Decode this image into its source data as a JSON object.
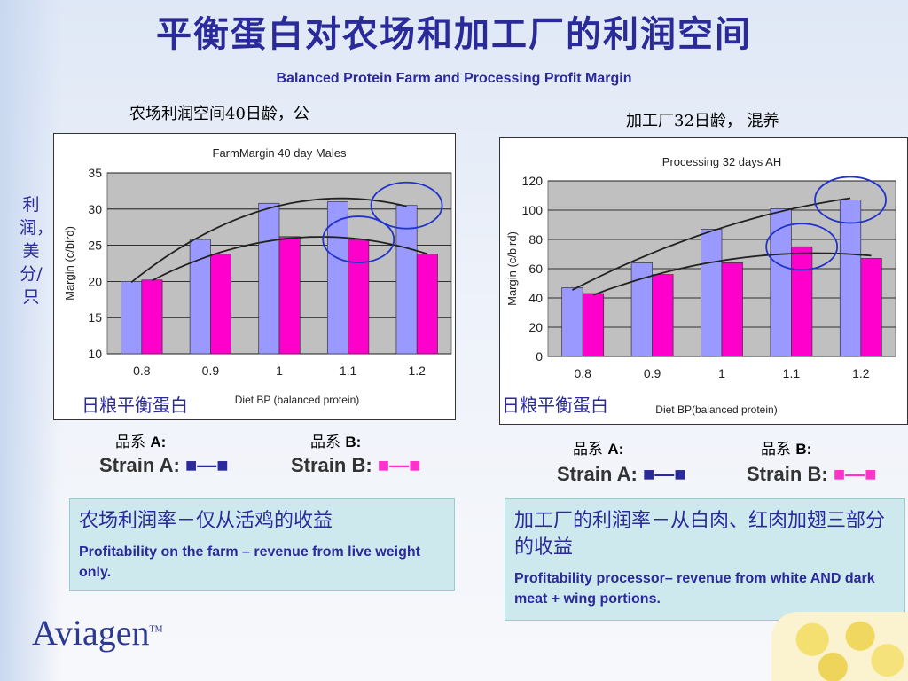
{
  "title": "平衡蛋白对农场和加工厂的利润空间",
  "subtitle": "Balanced Protein Farm and Processing Profit Margin",
  "left_caption": "农场利润空间40日龄，公",
  "right_caption": "加工厂32日龄， 混养",
  "vertical_label": "利润，美分/只",
  "diet_label_zh": "日粮平衡蛋白",
  "strain_a_zh": "品系",
  "strain_a_letter": "A:",
  "strain_b_zh": "品系",
  "strain_b_letter": "B:",
  "strain_a_en": "Strain A:",
  "strain_b_en": "Strain B:",
  "farm_box": {
    "zh": "农场利润率－仅从活鸡的收益",
    "en": "Profitability on the farm – revenue from live weight only."
  },
  "proc_box": {
    "zh": "加工厂的利润率－从白肉、红肉加翅三部分的收益",
    "en": "Profitability processor– revenue from white AND dark meat + wing portions."
  },
  "logo": "Aviagen",
  "logo_tm": "TM",
  "colors": {
    "strain_a": "#9999ff",
    "strain_b": "#ff00cc",
    "title": "#2b2a9a",
    "plot_bg": "#c0c0c0"
  },
  "chart_data": [
    {
      "type": "bar",
      "title": "FarmMargin 40 day Males",
      "xlabel": "Diet BP (balanced protein)",
      "ylabel": "Margin (c/bird)",
      "categories": [
        "0.8",
        "0.9",
        "1",
        "1.1",
        "1.2"
      ],
      "ylim": [
        10,
        35
      ],
      "yticks": [
        10,
        15,
        20,
        25,
        30,
        35
      ],
      "series": [
        {
          "name": "Strain A",
          "values": [
            20,
            25.8,
            30.8,
            31,
            30.5
          ]
        },
        {
          "name": "Strain B",
          "values": [
            20.2,
            23.8,
            26.2,
            25.8,
            23.8
          ]
        }
      ],
      "trend_curves": true,
      "highlight_circles": [
        "1.1",
        "1.2"
      ]
    },
    {
      "type": "bar",
      "title": "Processing 32 days AH",
      "xlabel": "Diet BP(balanced protein)",
      "ylabel": "Margin (c/bird)",
      "categories": [
        "0.8",
        "0.9",
        "1",
        "1.1",
        "1.2"
      ],
      "ylim": [
        0,
        120
      ],
      "yticks": [
        0,
        20,
        40,
        60,
        80,
        100,
        120
      ],
      "series": [
        {
          "name": "Strain A",
          "values": [
            47,
            64,
            87,
            101,
            107
          ]
        },
        {
          "name": "Strain B",
          "values": [
            43,
            56,
            64,
            75,
            67
          ]
        }
      ],
      "trend_curves": true,
      "highlight_circles": [
        "1.1",
        "1.2"
      ]
    }
  ]
}
